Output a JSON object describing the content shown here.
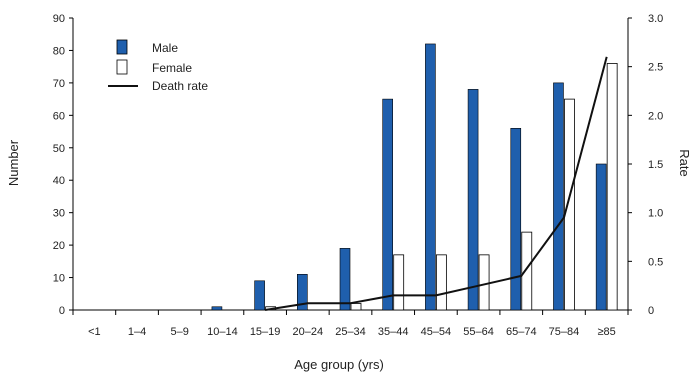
{
  "chart_data": {
    "type": "bar",
    "categories": [
      "<1",
      "1–4",
      "5–9",
      "10–14",
      "15–19",
      "20–24",
      "25–34",
      "35–44",
      "45–54",
      "55–64",
      "65–74",
      "75–84",
      "≥85"
    ],
    "series": [
      {
        "name": "Male",
        "type": "bar",
        "axis": "left",
        "color": "#1f5fad",
        "values": [
          0,
          0,
          0,
          1,
          9,
          11,
          19,
          65,
          82,
          68,
          56,
          70,
          45
        ]
      },
      {
        "name": "Female",
        "type": "bar",
        "axis": "left",
        "color": "#ffffff",
        "values": [
          0,
          0,
          0,
          0,
          1,
          0,
          2,
          17,
          17,
          17,
          24,
          65,
          76
        ]
      },
      {
        "name": "Death rate",
        "type": "line",
        "axis": "right",
        "color": "#111111",
        "values": [
          null,
          null,
          null,
          null,
          0.0,
          0.07,
          0.07,
          0.15,
          0.15,
          0.25,
          0.35,
          0.95,
          2.6
        ]
      }
    ],
    "xlabel": "Age group (yrs)",
    "ylabel": "Number",
    "y2label": "Rate",
    "ylim": [
      0,
      90
    ],
    "y2lim": [
      0,
      3.0
    ],
    "yticks": [
      0,
      10,
      20,
      30,
      40,
      50,
      60,
      70,
      80,
      90
    ],
    "y2ticks": [
      "0",
      "0.5",
      "1.0",
      "1.5",
      "2.0",
      "2.5",
      "3.0"
    ],
    "y2tick_values": [
      0,
      0.5,
      1.0,
      1.5,
      2.0,
      2.5,
      3.0
    ],
    "grid": false,
    "legend_position": "top-left"
  }
}
